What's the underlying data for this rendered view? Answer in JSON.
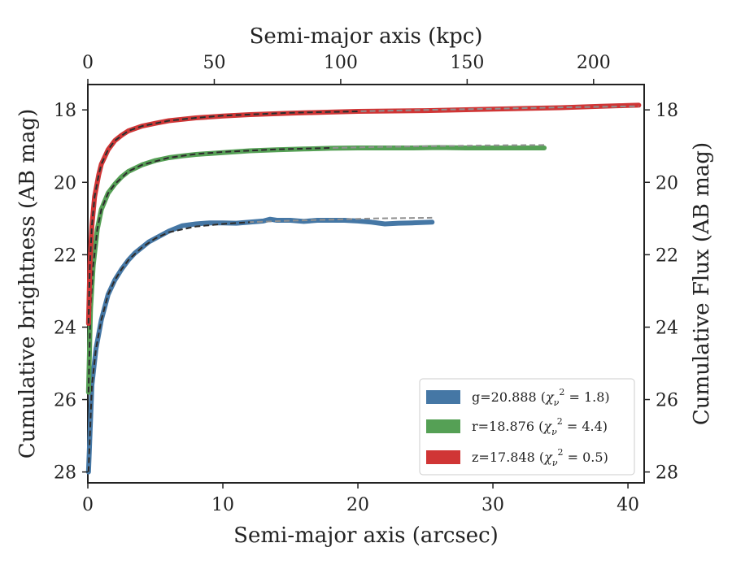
{
  "chart_data": {
    "type": "line",
    "title": "",
    "xlabel": "Semi-major axis (arcsec)",
    "ylabel": "Cumulative brightness (AB mag)",
    "top_xlabel": "Semi-major axis (kpc)",
    "right_ylabel": "Cumulative Flux (AB mag)",
    "xlim": [
      0,
      41.2
    ],
    "ylim": [
      28.3,
      17.3
    ],
    "y_inverted": true,
    "top_xlim": [
      0,
      220
    ],
    "x_ticks": [
      0,
      10,
      20,
      30,
      40
    ],
    "top_x_ticks": [
      0,
      50,
      100,
      150,
      200
    ],
    "y_ticks": [
      18,
      20,
      22,
      24,
      26,
      28
    ],
    "grid": false,
    "legend_position": "lower-right",
    "series": [
      {
        "name": "g=20.888",
        "chi2_label": "1.8",
        "color": "#4577a5",
        "x": [
          0.05,
          0.3,
          0.6,
          1.0,
          1.5,
          2.0,
          2.5,
          3.0,
          3.5,
          4.0,
          4.5,
          5.0,
          6.0,
          7.0,
          8.0,
          9.0,
          10.0,
          11.0,
          12.0,
          13.0,
          13.5,
          14.0,
          15.0,
          16.0,
          17.0,
          18.0,
          19.0,
          20.0,
          21.0,
          22.0,
          23.0,
          24.0,
          25.5
        ],
        "y": [
          28.0,
          25.6,
          24.6,
          23.8,
          23.1,
          22.7,
          22.4,
          22.15,
          21.95,
          21.8,
          21.65,
          21.55,
          21.35,
          21.2,
          21.15,
          21.12,
          21.12,
          21.13,
          21.1,
          21.07,
          21.02,
          21.05,
          21.05,
          21.08,
          21.05,
          21.05,
          21.05,
          21.07,
          21.1,
          21.15,
          21.13,
          21.12,
          21.1
        ],
        "model_x": [
          0.05,
          0.3,
          0.6,
          1.0,
          1.5,
          2.0,
          2.5,
          3.0,
          4.0,
          5.0,
          6.0,
          8.0,
          10.0,
          12.0,
          15.0,
          18.0,
          21.0,
          25.5
        ],
        "model_y": [
          28.0,
          25.6,
          24.6,
          23.8,
          23.1,
          22.7,
          22.4,
          22.15,
          21.8,
          21.55,
          21.38,
          21.22,
          21.15,
          21.1,
          21.06,
          21.03,
          21.0,
          20.98
        ]
      },
      {
        "name": "r=18.876",
        "chi2_label": "4.4",
        "color": "#55a055",
        "x": [
          0.05,
          0.2,
          0.4,
          0.7,
          1.0,
          1.5,
          2.0,
          2.5,
          3.0,
          4.0,
          5.0,
          6.0,
          7.0,
          8.0,
          10.0,
          12.0,
          14.0,
          16.0,
          18.0,
          20.0,
          22.0,
          24.0,
          26.0,
          28.0,
          30.0,
          32.0,
          33.8
        ],
        "y": [
          25.8,
          23.5,
          22.3,
          21.3,
          20.75,
          20.3,
          20.05,
          19.85,
          19.7,
          19.52,
          19.4,
          19.32,
          19.27,
          19.23,
          19.18,
          19.13,
          19.1,
          19.08,
          19.06,
          19.05,
          19.05,
          19.05,
          19.04,
          19.05,
          19.05,
          19.05,
          19.05
        ],
        "model_x": [
          0.05,
          0.2,
          0.4,
          0.7,
          1.0,
          1.5,
          2.0,
          3.0,
          4.0,
          6.0,
          8.0,
          10.0,
          14.0,
          18.0,
          22.0,
          26.0,
          30.0,
          33.8
        ],
        "model_y": [
          25.8,
          23.5,
          22.3,
          21.3,
          20.75,
          20.3,
          20.05,
          19.7,
          19.52,
          19.32,
          19.22,
          19.16,
          19.09,
          19.05,
          19.02,
          19.0,
          18.98,
          18.97
        ]
      },
      {
        "name": "z=17.848",
        "chi2_label": "0.5",
        "color": "#d03535",
        "x": [
          0.05,
          0.15,
          0.3,
          0.5,
          0.8,
          1.0,
          1.5,
          2.0,
          2.5,
          3.0,
          4.0,
          5.0,
          6.0,
          8.0,
          10.0,
          12.0,
          15.0,
          18.0,
          20.0,
          25.0,
          30.0,
          35.0,
          38.0,
          40.0,
          40.8
        ],
        "y": [
          23.9,
          22.3,
          21.2,
          20.4,
          19.8,
          19.5,
          19.1,
          18.85,
          18.7,
          18.58,
          18.45,
          18.37,
          18.3,
          18.22,
          18.17,
          18.13,
          18.09,
          18.06,
          18.04,
          18.02,
          17.98,
          17.94,
          17.9,
          17.88,
          17.87
        ],
        "model_x": [
          0.05,
          0.15,
          0.3,
          0.5,
          0.8,
          1.0,
          1.5,
          2.0,
          3.0,
          4.0,
          6.0,
          8.0,
          10.0,
          15.0,
          20.0,
          25.0,
          30.0,
          35.0,
          40.8
        ],
        "model_y": [
          23.9,
          22.3,
          21.2,
          20.4,
          19.8,
          19.5,
          19.1,
          18.85,
          18.58,
          18.45,
          18.3,
          18.22,
          18.16,
          18.08,
          18.04,
          18.0,
          17.97,
          17.93,
          17.9
        ]
      }
    ],
    "model_style": {
      "color": "#2b2b2b",
      "color_gray": "#909090",
      "dash": "7,4"
    }
  }
}
